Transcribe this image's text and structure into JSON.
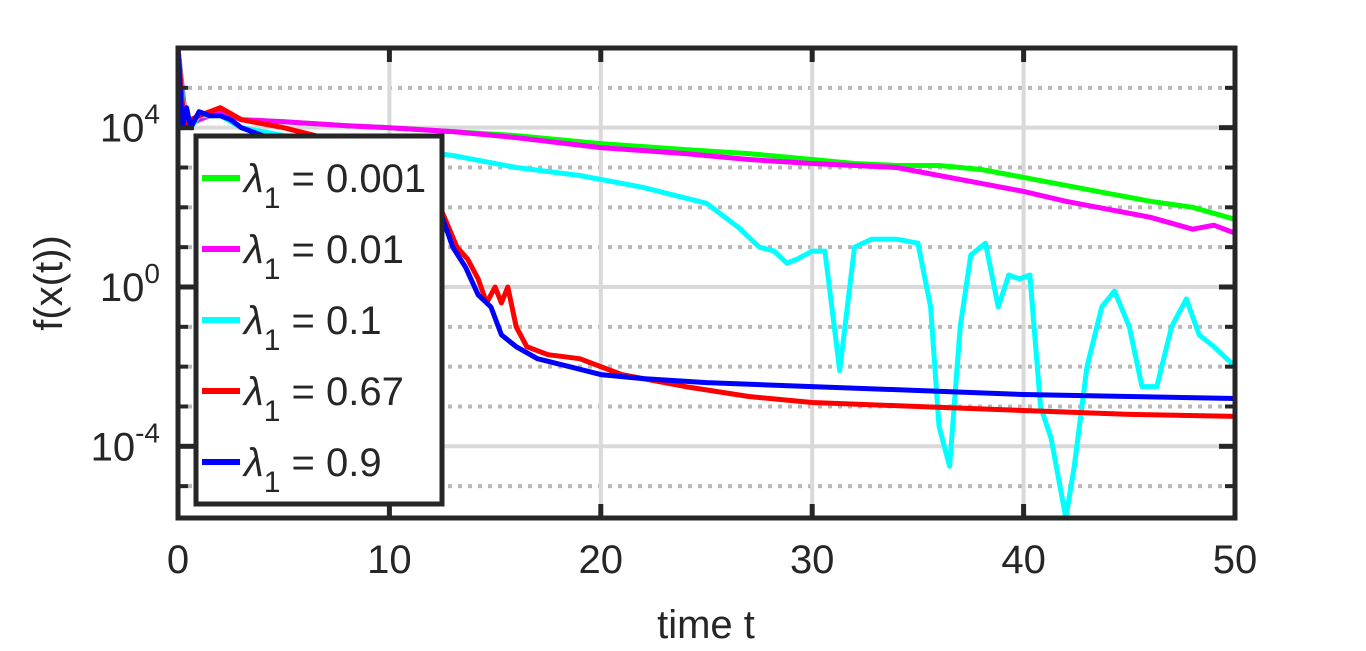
{
  "chart_data": {
    "type": "line",
    "title": "",
    "xlabel": "time t",
    "ylabel": "f(x(t))",
    "xlim": [
      0,
      50
    ],
    "ylim_log10": [
      -5.8,
      6
    ],
    "y_scale": "log",
    "x_ticks": [
      0,
      10,
      20,
      30,
      40,
      50
    ],
    "x_tick_labels": [
      "0",
      "10",
      "20",
      "30",
      "40",
      "50"
    ],
    "y_ticks_log10": [
      4,
      0,
      -4
    ],
    "y_tick_labels": [
      {
        "base": "10",
        "exp": "4"
      },
      {
        "base": "10",
        "exp": "0"
      },
      {
        "base": "10",
        "exp": "-4"
      }
    ],
    "grid": true,
    "minor_grid": true,
    "legend_position": "upper-left",
    "series": [
      {
        "name": "λ1 = 0.001",
        "label_symbol": "λ",
        "label_sub": "1",
        "label_value": " = 0.001",
        "color": "#00ff00",
        "x": [
          0,
          0.3,
          0.6,
          1,
          2,
          3,
          5,
          8,
          10,
          13,
          16,
          20,
          24,
          27,
          30,
          32,
          34,
          36,
          38,
          40,
          42,
          44,
          46,
          48,
          50
        ],
        "log10_y": [
          6,
          4.5,
          4.1,
          4.2,
          4.4,
          4.2,
          4.15,
          4.05,
          4.0,
          3.9,
          3.8,
          3.6,
          3.45,
          3.35,
          3.2,
          3.1,
          3.05,
          3.05,
          2.95,
          2.75,
          2.55,
          2.35,
          2.15,
          2.0,
          1.7
        ]
      },
      {
        "name": "λ1 = 0.01",
        "label_symbol": "λ",
        "label_sub": "1",
        "label_value": " = 0.01",
        "color": "#ff00ff",
        "x": [
          0,
          0.3,
          0.6,
          1,
          2,
          3,
          5,
          8,
          10,
          13,
          16,
          20,
          24,
          27,
          30,
          32,
          34,
          36,
          38,
          40,
          42,
          44,
          46,
          48,
          49,
          50
        ],
        "log10_y": [
          6,
          4.5,
          4.1,
          4.2,
          4.4,
          4.2,
          4.15,
          4.05,
          4.0,
          3.9,
          3.75,
          3.5,
          3.35,
          3.2,
          3.1,
          3.05,
          3.0,
          2.8,
          2.6,
          2.4,
          2.15,
          1.95,
          1.75,
          1.45,
          1.55,
          1.35
        ]
      },
      {
        "name": "λ1 = 0.1",
        "label_symbol": "λ",
        "label_sub": "1",
        "label_value": " = 0.1",
        "color": "#00ffff",
        "x": [
          0,
          0.3,
          0.6,
          1,
          2,
          3,
          5,
          8,
          10,
          13,
          16,
          19,
          22,
          25,
          26.5,
          27.5,
          28.2,
          28.8,
          29.3,
          30,
          30.6,
          31.3,
          32,
          32.8,
          34,
          35,
          35.6,
          36,
          36.5,
          37,
          37.5,
          38.2,
          38.8,
          39.3,
          39.8,
          40.3,
          40.8,
          41.3,
          42,
          42.4,
          43,
          43.7,
          44.3,
          45,
          45.6,
          46.3,
          47,
          47.7,
          48.3,
          49,
          50
        ],
        "log10_y": [
          6,
          4.3,
          4.0,
          4.3,
          4.3,
          4.0,
          3.8,
          3.6,
          3.5,
          3.3,
          3.0,
          2.8,
          2.5,
          2.1,
          1.5,
          1.0,
          0.9,
          0.6,
          0.7,
          0.9,
          0.9,
          -2.1,
          1.0,
          1.2,
          1.2,
          1.1,
          -0.5,
          -3.5,
          -4.5,
          -1.0,
          0.8,
          1.1,
          -0.5,
          0.3,
          0.2,
          0.3,
          -3.0,
          -3.8,
          -5.8,
          -4.5,
          -2.0,
          -0.5,
          -0.1,
          -1.0,
          -2.5,
          -2.5,
          -1.0,
          -0.3,
          -1.2,
          -1.5,
          -2.0
        ]
      },
      {
        "name": "λ1 = 0.67",
        "label_symbol": "λ",
        "label_sub": "1",
        "label_value": " = 0.67",
        "color": "#ff0000",
        "x": [
          0,
          0.3,
          0.6,
          1,
          2,
          3,
          5,
          8,
          10,
          12,
          13.2,
          13.7,
          14.2,
          14.6,
          15.0,
          15.3,
          15.6,
          16.0,
          16.5,
          17.5,
          19,
          21,
          24,
          27,
          30,
          35,
          40,
          45,
          50
        ],
        "log10_y": [
          6,
          4.0,
          4.2,
          4.3,
          4.5,
          4.2,
          4.0,
          3.6,
          3.3,
          2.5,
          1.0,
          0.7,
          0.2,
          -0.4,
          0.0,
          -0.4,
          0.0,
          -1.0,
          -1.5,
          -1.7,
          -1.8,
          -2.2,
          -2.5,
          -2.75,
          -2.9,
          -3.0,
          -3.1,
          -3.2,
          -3.25
        ]
      },
      {
        "name": "λ1 = 0.9",
        "label_symbol": "λ",
        "label_sub": "1",
        "label_value": " = 0.9",
        "color": "#0000ff",
        "x": [
          0,
          0.2,
          0.4,
          0.6,
          1,
          1.5,
          2,
          2.5,
          3,
          4,
          6,
          8,
          10,
          12,
          13,
          13.6,
          14.2,
          14.8,
          15.3,
          16,
          17,
          18.5,
          20,
          22,
          25,
          30,
          35,
          40,
          45,
          50
        ],
        "log10_y": [
          6,
          4.0,
          4.5,
          4.0,
          4.4,
          4.3,
          4.3,
          4.2,
          4.0,
          3.8,
          3.5,
          3.3,
          3.2,
          2.5,
          1.0,
          0.5,
          -0.2,
          -0.5,
          -1.2,
          -1.5,
          -1.8,
          -2.0,
          -2.2,
          -2.3,
          -2.4,
          -2.5,
          -2.6,
          -2.7,
          -2.75,
          -2.8
        ]
      }
    ]
  }
}
